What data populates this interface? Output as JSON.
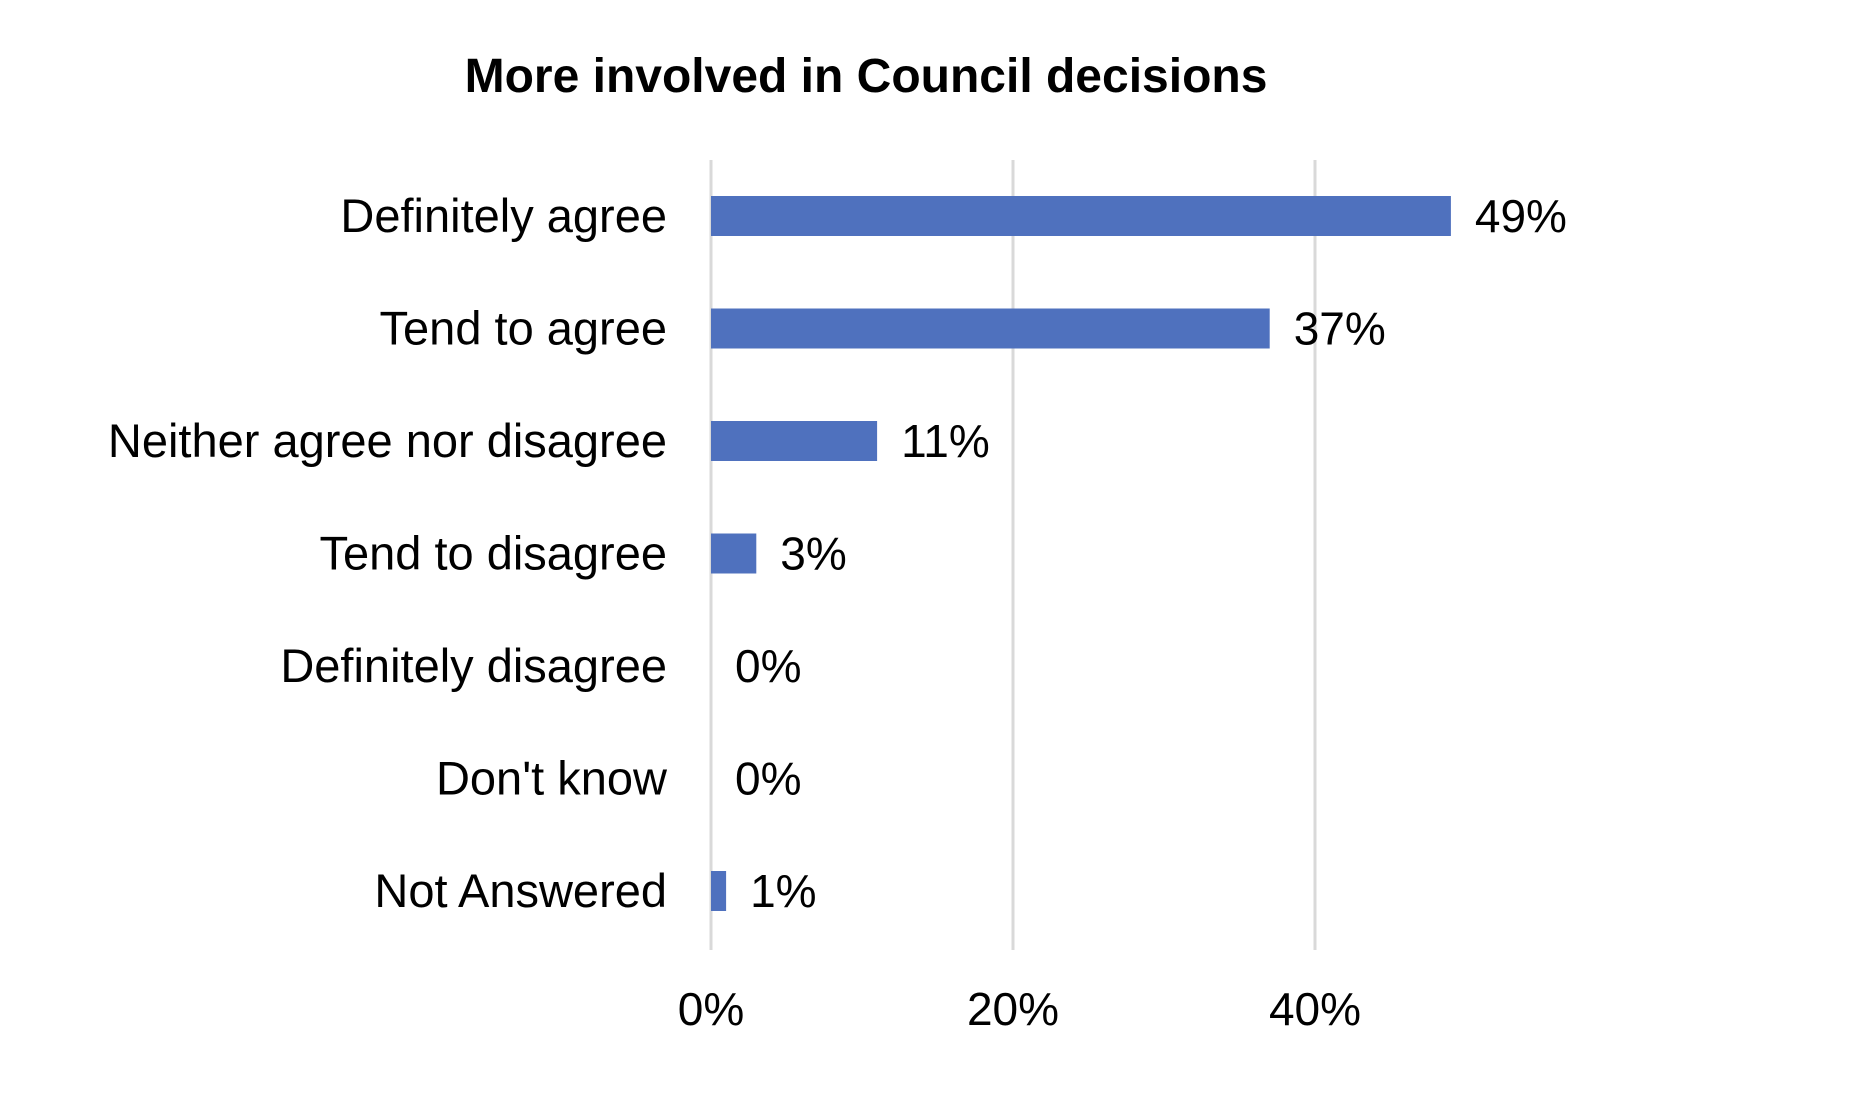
{
  "chart_data": {
    "type": "bar",
    "orientation": "horizontal",
    "title": "More involved in Council decisions",
    "xlabel": "",
    "ylabel": "",
    "categories": [
      "Definitely agree",
      "Tend to agree",
      "Neither agree nor disagree",
      "Tend to disagree",
      "Definitely disagree",
      "Don't know",
      "Not Answered"
    ],
    "values": [
      49,
      37,
      11,
      3,
      0,
      0,
      1
    ],
    "data_labels": [
      "49%",
      "37%",
      "11%",
      "3%",
      "0%",
      "0%",
      "1%"
    ],
    "x_ticks": [
      0,
      20,
      40
    ],
    "x_tick_labels": [
      "0%",
      "20%",
      "40%"
    ],
    "xlim": [
      0,
      50
    ],
    "grid": true,
    "legend": "none",
    "colors": {
      "bar": "#4f71be",
      "gridline": "#d9d9d9",
      "text": "#000000"
    }
  }
}
